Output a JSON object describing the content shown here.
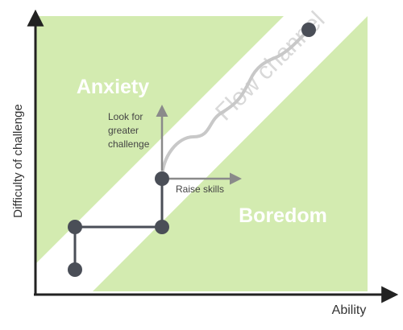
{
  "axes": {
    "y_label": "Difficulty of challenge",
    "x_label": "Ability"
  },
  "regions": {
    "upper_label": "Anxiety",
    "lower_label": "Boredom",
    "channel_label": "Flow channel"
  },
  "annotations": {
    "up_arrow_label_line1": "Look for",
    "up_arrow_label_line2": "greater",
    "up_arrow_label_line3": "challenge",
    "right_arrow_label": "Raise skills"
  },
  "colors": {
    "region_fill": "#d3ebb0",
    "axis": "#222222",
    "path": "#4a4e57",
    "arrow": "#8a8a8a",
    "wavy": "#c8c8c8",
    "region_label": "#ffffff",
    "channel_label": "#d9d9d9"
  }
}
